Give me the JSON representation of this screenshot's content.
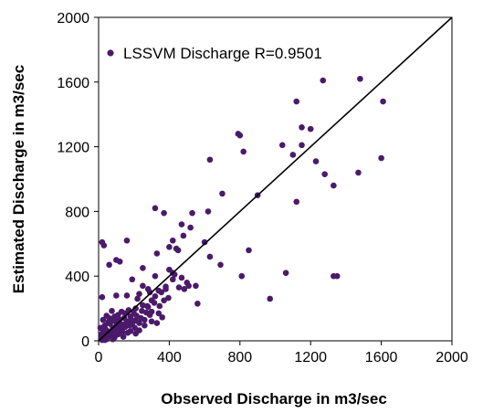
{
  "chart_data": {
    "type": "scatter",
    "xlabel": "Observed Discharge  in m3/sec",
    "ylabel": "Estimated  Discharge  in m3/sec",
    "xlim": [
      0,
      2000
    ],
    "ylim": [
      0,
      2000
    ],
    "x_ticks": [
      "0",
      "400",
      "800",
      "1200",
      "1600",
      "2000"
    ],
    "y_ticks": [
      "0",
      "400",
      "800",
      "1200",
      "1600",
      "2000"
    ],
    "grid": false,
    "legend_position": "top-left",
    "reference_line": "1:1 line",
    "marker_color": "#4b1a6b",
    "series": [
      {
        "name": "LSSVM Discharge R=0.9501",
        "points": [
          [
            1480,
            1620
          ],
          [
            1270,
            1610
          ],
          [
            1610,
            1480
          ],
          [
            1120,
            1480
          ],
          [
            1150,
            1320
          ],
          [
            1200,
            1310
          ],
          [
            790,
            1280
          ],
          [
            800,
            1270
          ],
          [
            1150,
            1210
          ],
          [
            1040,
            1210
          ],
          [
            820,
            1170
          ],
          [
            630,
            1120
          ],
          [
            1100,
            1150
          ],
          [
            1230,
            1110
          ],
          [
            1600,
            1130
          ],
          [
            1280,
            1030
          ],
          [
            1470,
            1040
          ],
          [
            1330,
            960
          ],
          [
            700,
            910
          ],
          [
            900,
            900
          ],
          [
            1120,
            860
          ],
          [
            320,
            820
          ],
          [
            370,
            790
          ],
          [
            530,
            790
          ],
          [
            620,
            800
          ],
          [
            470,
            720
          ],
          [
            520,
            700
          ],
          [
            480,
            650
          ],
          [
            420,
            620
          ],
          [
            160,
            620
          ],
          [
            20,
            610
          ],
          [
            30,
            590
          ],
          [
            600,
            610
          ],
          [
            400,
            580
          ],
          [
            440,
            570
          ],
          [
            450,
            560
          ],
          [
            330,
            540
          ],
          [
            850,
            560
          ],
          [
            630,
            520
          ],
          [
            100,
            500
          ],
          [
            120,
            490
          ],
          [
            60,
            470
          ],
          [
            690,
            470
          ],
          [
            400,
            440
          ],
          [
            250,
            450
          ],
          [
            420,
            420
          ],
          [
            430,
            410
          ],
          [
            320,
            400
          ],
          [
            810,
            400
          ],
          [
            470,
            390
          ],
          [
            1060,
            420
          ],
          [
            1330,
            400
          ],
          [
            1350,
            400
          ],
          [
            190,
            380
          ],
          [
            420,
            380
          ],
          [
            500,
            360
          ],
          [
            550,
            340
          ],
          [
            380,
            320
          ],
          [
            340,
            310
          ],
          [
            290,
            300
          ],
          [
            230,
            290
          ],
          [
            160,
            280
          ],
          [
            100,
            280
          ],
          [
            20,
            270
          ],
          [
            220,
            260
          ],
          [
            300,
            250
          ],
          [
            370,
            250
          ],
          [
            970,
            260
          ],
          [
            560,
            230
          ],
          [
            250,
            220
          ],
          [
            280,
            210
          ],
          [
            210,
            200
          ],
          [
            170,
            190
          ],
          [
            130,
            180
          ],
          [
            150,
            170
          ],
          [
            200,
            170
          ],
          [
            110,
            160
          ],
          [
            180,
            150
          ],
          [
            90,
            150
          ],
          [
            60,
            140
          ],
          [
            260,
            130
          ],
          [
            300,
            120
          ],
          [
            330,
            110
          ],
          [
            230,
            110
          ],
          [
            140,
            100
          ],
          [
            100,
            90
          ],
          [
            80,
            80
          ],
          [
            120,
            70
          ],
          [
            50,
            60
          ],
          [
            70,
            50
          ],
          [
            40,
            40
          ],
          [
            60,
            30
          ],
          [
            90,
            20
          ],
          [
            30,
            20
          ],
          [
            45,
            10
          ],
          [
            20,
            5
          ],
          [
            150,
            85
          ],
          [
            175,
            95
          ],
          [
            210,
            125
          ],
          [
            240,
            140
          ],
          [
            55,
            115
          ],
          [
            35,
            95
          ],
          [
            85,
            125
          ],
          [
            95,
            65
          ],
          [
            25,
            55
          ],
          [
            65,
            105
          ],
          [
            115,
            135
          ],
          [
            135,
            55
          ],
          [
            160,
            120
          ],
          [
            190,
            105
          ],
          [
            205,
            80
          ],
          [
            110,
            40
          ],
          [
            80,
            10
          ],
          [
            35,
            5
          ],
          [
            15,
            40
          ],
          [
            10,
            80
          ],
          [
            45,
            155
          ],
          [
            75,
            185
          ],
          [
            25,
            130
          ],
          [
            55,
            30
          ],
          [
            140,
            25
          ],
          [
            180,
            60
          ],
          [
            210,
            45
          ],
          [
            230,
            65
          ],
          [
            260,
            95
          ],
          [
            270,
            175
          ],
          [
            300,
            180
          ],
          [
            340,
            170
          ],
          [
            360,
            145
          ],
          [
            290,
            160
          ],
          [
            100,
            115
          ],
          [
            15,
            20
          ],
          [
            120,
            110
          ],
          [
            40,
            70
          ],
          [
            70,
            35
          ],
          [
            95,
            45
          ],
          [
            125,
            85
          ],
          [
            165,
            50
          ],
          [
            145,
            140
          ],
          [
            185,
            130
          ],
          [
            215,
            155
          ],
          [
            245,
            185
          ],
          [
            275,
            215
          ],
          [
            315,
            235
          ],
          [
            345,
            215
          ],
          [
            395,
            265
          ],
          [
            355,
            300
          ],
          [
            455,
            330
          ],
          [
            485,
            320
          ],
          [
            510,
            340
          ],
          [
            320,
            275
          ],
          [
            380,
            335
          ],
          [
            280,
            320
          ],
          [
            250,
            340
          ]
        ]
      }
    ]
  }
}
